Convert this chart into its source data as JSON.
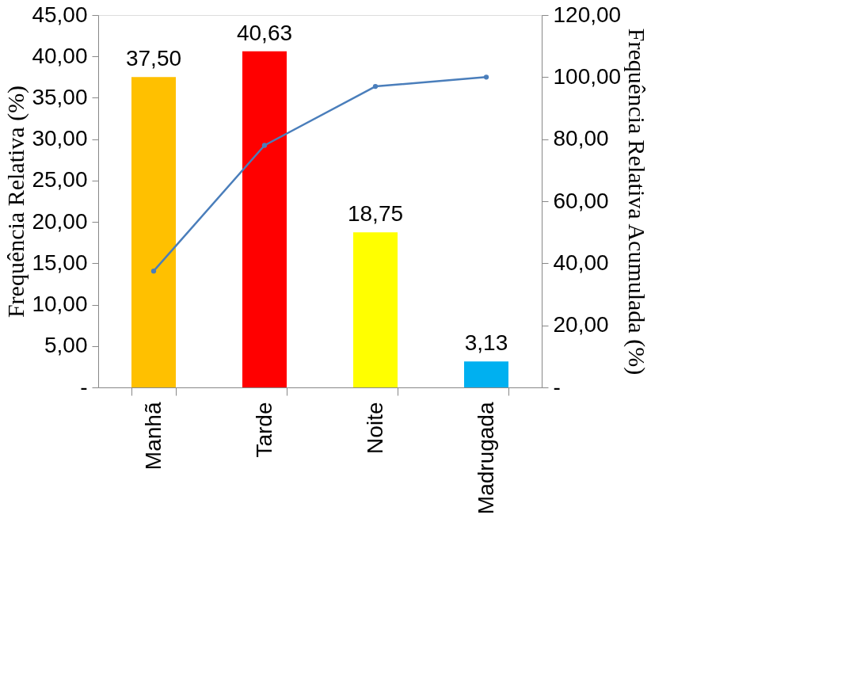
{
  "chart_data": {
    "type": "bar",
    "ylabel": "Frequência Relativa (%)",
    "y2label": "Frequência Relativa Acumulada (%)",
    "categories": [
      "Manhã",
      "Tarde",
      "Noite",
      "Madrugada"
    ],
    "series": [
      {
        "colors": [
          "#ffc000",
          "#ff0000",
          "#ffff00",
          "#00b0f0"
        ],
        "values": [
          37.5,
          40.63,
          18.75,
          3.13
        ],
        "value_labels": [
          "37,50",
          "40,63",
          "18,75",
          "3,13"
        ]
      },
      {
        "type": "line",
        "axis": "y2",
        "color": "#4a7ebb",
        "marker": "circle",
        "values": [
          37.5,
          78,
          97,
          100
        ]
      }
    ],
    "ylim": [
      0,
      45
    ],
    "yticks": [
      {
        "value": 0,
        "label": "-"
      },
      {
        "value": 5,
        "label": "5,00"
      },
      {
        "value": 10,
        "label": "10,00"
      },
      {
        "value": 15,
        "label": "15,00"
      },
      {
        "value": 20,
        "label": "20,00"
      },
      {
        "value": 25,
        "label": "25,00"
      },
      {
        "value": 30,
        "label": "30,00"
      },
      {
        "value": 35,
        "label": "35,00"
      },
      {
        "value": 40,
        "label": "40,00"
      },
      {
        "value": 45,
        "label": "45,00"
      }
    ],
    "y2lim": [
      0,
      120
    ],
    "y2ticks": [
      {
        "value": 0,
        "label": "-"
      },
      {
        "value": 20,
        "label": "20,00"
      },
      {
        "value": 40,
        "label": "40,00"
      },
      {
        "value": 60,
        "label": "60,00"
      },
      {
        "value": 80,
        "label": "80,00"
      },
      {
        "value": 100,
        "label": "100,00"
      },
      {
        "value": 120,
        "label": "120,00"
      }
    ],
    "grid": false,
    "legend": false
  }
}
